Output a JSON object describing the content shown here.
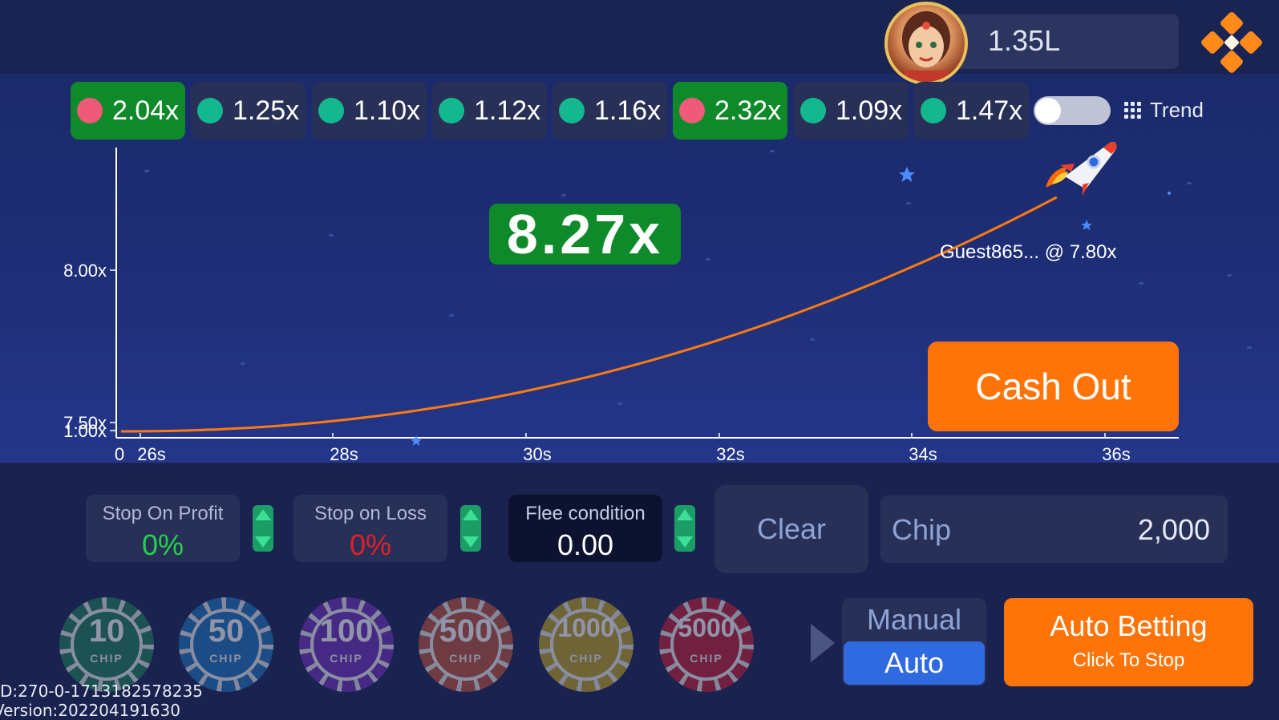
{
  "balance": "1.35L",
  "history": [
    {
      "value": "2.04x",
      "dot": "red",
      "highlight": true
    },
    {
      "value": "1.25x",
      "dot": "green",
      "highlight": false
    },
    {
      "value": "1.10x",
      "dot": "green",
      "highlight": false
    },
    {
      "value": "1.12x",
      "dot": "green",
      "highlight": false
    },
    {
      "value": "1.16x",
      "dot": "green",
      "highlight": false
    },
    {
      "value": "2.32x",
      "dot": "red",
      "highlight": true
    },
    {
      "value": "1.09x",
      "dot": "green",
      "highlight": false
    },
    {
      "value": "1.47x",
      "dot": "green",
      "highlight": false
    }
  ],
  "trend_label": "Trend",
  "trend_toggle_on": false,
  "current_multiplier": "8.27x",
  "guest_label": "Guest865... @ 7.80x",
  "cashout_label": "Cash Out",
  "chart_data": {
    "type": "line",
    "y_ticks": [
      "8.00x",
      "7.50x",
      "1.00x"
    ],
    "x_ticks": [
      "0",
      "26s",
      "28s",
      "30s",
      "32s",
      "34s",
      "36s"
    ],
    "x": [
      25.8,
      28,
      30,
      32,
      34,
      35.5
    ],
    "y": [
      1.0,
      1.18,
      1.9,
      3.6,
      6.3,
      8.27
    ],
    "line_color": "#ff7a10"
  },
  "controls": {
    "stop_profit": {
      "title": "Stop On Profit",
      "value": "0%",
      "color": "#22d34a"
    },
    "stop_loss": {
      "title": "Stop on Loss",
      "value": "0%",
      "color": "#e0202a"
    },
    "flee": {
      "title": "Flee condition",
      "value": "0.00"
    },
    "clear": "Clear",
    "chip_label": "Chip",
    "chip_value": "2,000"
  },
  "chips": [
    {
      "num": "10",
      "word": "CHIP",
      "color": "#1f7a52"
    },
    {
      "num": "50",
      "word": "CHIP",
      "color": "#1f6fb2"
    },
    {
      "num": "100",
      "word": "CHIP",
      "color": "#6b2fb0"
    },
    {
      "num": "500",
      "word": "CHIP",
      "color": "#b5503a"
    },
    {
      "num": "1000",
      "word": "CHIP",
      "color": "#b69a22"
    },
    {
      "num": "5000",
      "word": "CHIP",
      "color": "#b81f34"
    }
  ],
  "mode": {
    "manual": "Manual",
    "auto": "Auto"
  },
  "auto_bet": {
    "title": "Auto Betting",
    "subtitle": "Click To Stop"
  },
  "debug": {
    "id": "D:270-0-1713182578235",
    "version": "Version:202204191630"
  }
}
